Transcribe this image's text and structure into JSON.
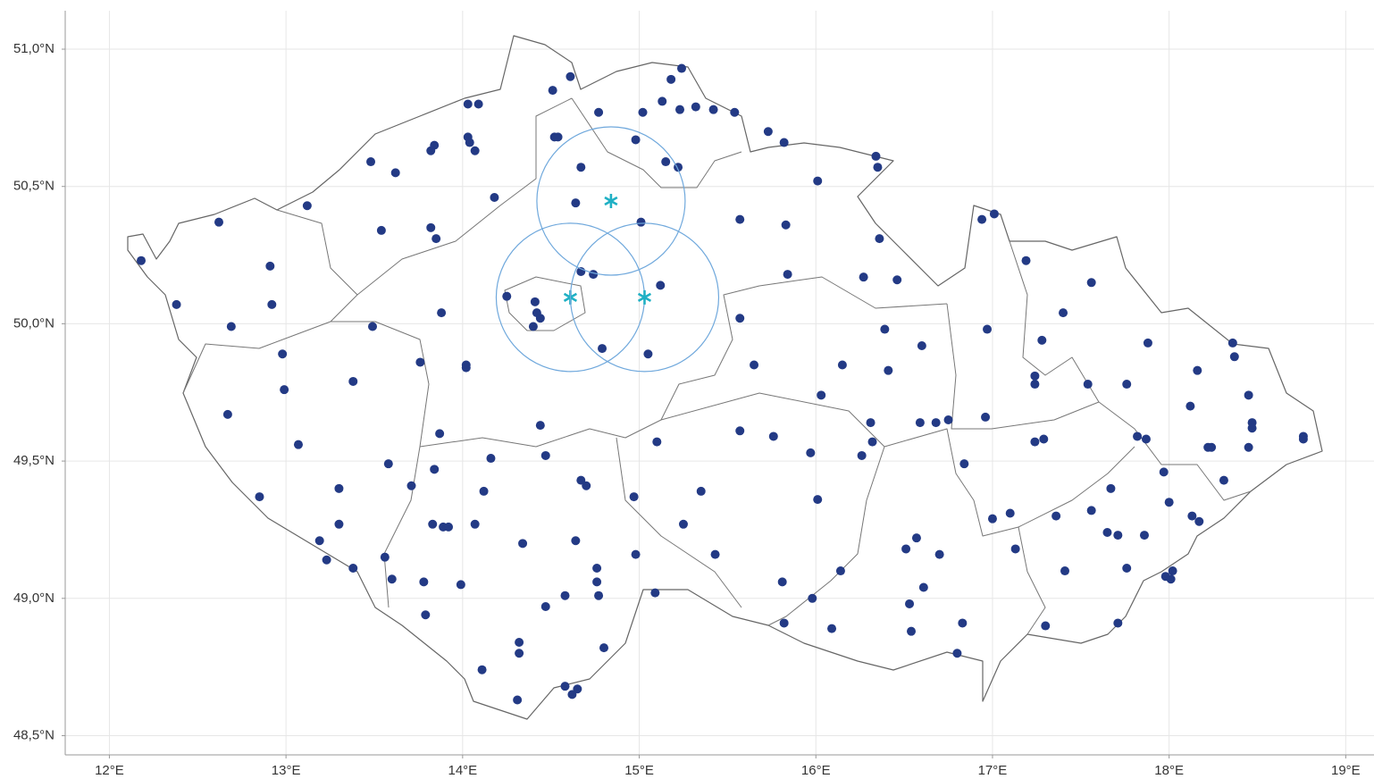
{
  "chart_data": {
    "type": "scatter",
    "xlim": [
      11.75,
      19.16
    ],
    "ylim": [
      48.43,
      51.14
    ],
    "grid": true,
    "xticks": [
      {
        "value": 12,
        "label": "12°E"
      },
      {
        "value": 13,
        "label": "13°E"
      },
      {
        "value": 14,
        "label": "14°E"
      },
      {
        "value": 15,
        "label": "15°E"
      },
      {
        "value": 16,
        "label": "16°E"
      },
      {
        "value": 17,
        "label": "17°E"
      },
      {
        "value": 18,
        "label": "18°E"
      },
      {
        "value": 19,
        "label": "19°E"
      }
    ],
    "yticks": [
      {
        "value": 48.5,
        "label": "48,5°N"
      },
      {
        "value": 49.0,
        "label": "49,0°N"
      },
      {
        "value": 49.5,
        "label": "49,5°N"
      },
      {
        "value": 50.0,
        "label": "50,0°N"
      },
      {
        "value": 50.5,
        "label": "50,5°N"
      },
      {
        "value": 51.0,
        "label": "51,0°N"
      }
    ],
    "series": [
      {
        "color": "#233a85",
        "marker": "dot",
        "x": [
          12.18,
          12.62,
          12.91,
          12.38,
          12.92,
          12.69,
          12.98,
          12.99,
          12.67,
          13.07,
          12.85,
          13.3,
          13.3,
          13.19,
          13.23,
          13.38,
          13.56,
          13.6,
          13.38,
          13.49,
          13.12,
          13.48,
          13.62,
          13.54,
          13.82,
          13.85,
          13.84,
          13.82,
          13.88,
          13.76,
          13.58,
          13.71,
          13.84,
          13.87,
          13.83,
          13.89,
          13.92,
          13.78,
          13.79,
          13.99,
          14.11,
          14.07,
          14.12,
          14.16,
          14.02,
          14.02,
          14.18,
          14.03,
          14.09,
          14.03,
          14.04,
          14.07,
          14.25,
          14.41,
          14.42,
          14.44,
          14.4,
          14.51,
          14.61,
          14.52,
          14.54,
          14.67,
          14.64,
          14.67,
          14.74,
          14.79,
          14.44,
          14.47,
          14.67,
          14.7,
          14.34,
          14.32,
          14.32,
          14.31,
          14.58,
          14.65,
          14.62,
          14.64,
          14.58,
          14.47,
          14.76,
          14.76,
          14.77,
          14.8,
          14.77,
          14.98,
          15.02,
          15.01,
          15.12,
          15.05,
          15.1,
          14.97,
          14.98,
          15.09,
          15.13,
          15.18,
          15.24,
          15.23,
          15.32,
          15.42,
          15.54,
          15.15,
          15.22,
          15.57,
          15.73,
          15.82,
          15.83,
          15.84,
          15.57,
          15.65,
          15.57,
          15.76,
          15.35,
          15.25,
          15.43,
          15.81,
          15.82,
          16.01,
          16.34,
          16.35,
          16.36,
          16.27,
          16.46,
          16.15,
          16.03,
          15.97,
          16.01,
          16.14,
          15.98,
          16.09,
          16.39,
          16.41,
          16.31,
          16.32,
          16.26,
          16.6,
          16.59,
          16.68,
          16.75,
          16.51,
          16.57,
          16.7,
          16.61,
          16.53,
          16.54,
          16.83,
          16.8,
          16.84,
          16.94,
          17.01,
          16.97,
          16.96,
          17.0,
          17.1,
          17.13,
          17.19,
          17.24,
          17.24,
          17.24,
          17.29,
          17.28,
          17.4,
          17.56,
          17.36,
          17.41,
          17.3,
          17.54,
          17.56,
          17.67,
          17.65,
          17.71,
          17.76,
          17.76,
          17.71,
          17.88,
          17.82,
          17.87,
          17.86,
          17.97,
          18.0,
          18.02,
          18.01,
          17.98,
          18.16,
          18.12,
          18.13,
          18.17,
          18.22,
          18.24,
          18.36,
          18.37,
          18.31,
          18.45,
          18.47,
          18.47,
          18.45,
          18.76,
          18.76
        ],
        "y": [
          50.23,
          50.37,
          50.21,
          50.07,
          50.07,
          49.99,
          49.89,
          49.76,
          49.67,
          49.56,
          49.37,
          49.4,
          49.27,
          49.21,
          49.14,
          49.11,
          49.15,
          49.07,
          49.79,
          49.99,
          50.43,
          50.59,
          50.55,
          50.34,
          50.35,
          50.31,
          50.65,
          50.63,
          50.04,
          49.86,
          49.49,
          49.41,
          49.47,
          49.6,
          49.27,
          49.26,
          49.26,
          49.06,
          48.94,
          49.05,
          48.74,
          49.27,
          49.39,
          49.51,
          49.85,
          49.84,
          50.46,
          50.8,
          50.8,
          50.68,
          50.66,
          50.63,
          50.1,
          50.08,
          50.04,
          50.02,
          49.99,
          50.85,
          50.9,
          50.68,
          50.68,
          50.57,
          50.44,
          50.19,
          50.18,
          49.91,
          49.63,
          49.52,
          49.43,
          49.41,
          49.2,
          48.84,
          48.8,
          48.63,
          48.68,
          48.67,
          48.65,
          49.21,
          49.01,
          48.97,
          49.11,
          49.06,
          49.01,
          48.82,
          50.77,
          50.67,
          50.77,
          50.37,
          50.14,
          49.89,
          49.57,
          49.37,
          49.16,
          49.02,
          50.81,
          50.89,
          50.93,
          50.78,
          50.79,
          50.78,
          50.77,
          50.59,
          50.57,
          50.38,
          50.7,
          50.66,
          50.36,
          50.18,
          50.02,
          49.85,
          49.61,
          49.59,
          49.39,
          49.27,
          49.16,
          49.06,
          48.91,
          50.52,
          50.61,
          50.57,
          50.31,
          50.17,
          50.16,
          49.85,
          49.74,
          49.53,
          49.36,
          49.1,
          49.0,
          48.89,
          49.98,
          49.83,
          49.64,
          49.57,
          49.52,
          49.92,
          49.64,
          49.64,
          49.65,
          49.18,
          49.22,
          49.16,
          49.04,
          48.98,
          48.88,
          48.91,
          48.8,
          49.49,
          50.38,
          50.4,
          49.98,
          49.66,
          49.29,
          49.31,
          49.18,
          50.23,
          49.81,
          49.78,
          49.57,
          49.58,
          49.94,
          50.04,
          50.15,
          49.3,
          49.1,
          48.9,
          49.78,
          49.32,
          49.4,
          49.24,
          49.23,
          49.78,
          49.11,
          48.91,
          49.93,
          49.59,
          49.58,
          49.23,
          49.46,
          49.35,
          49.1,
          49.07,
          49.08,
          49.83,
          49.7,
          49.3,
          49.28,
          49.55,
          49.55,
          49.93,
          49.88,
          49.43,
          49.74,
          49.64,
          49.62,
          49.55,
          49.59,
          49.58
        ]
      },
      {
        "color": "#1fb0c4",
        "marker": "star",
        "ring_color": "#6fa8dc",
        "radius": 0.27,
        "x": [
          14.84,
          14.61,
          15.03
        ],
        "y": [
          50.447,
          50.096,
          50.096
        ]
      }
    ]
  }
}
